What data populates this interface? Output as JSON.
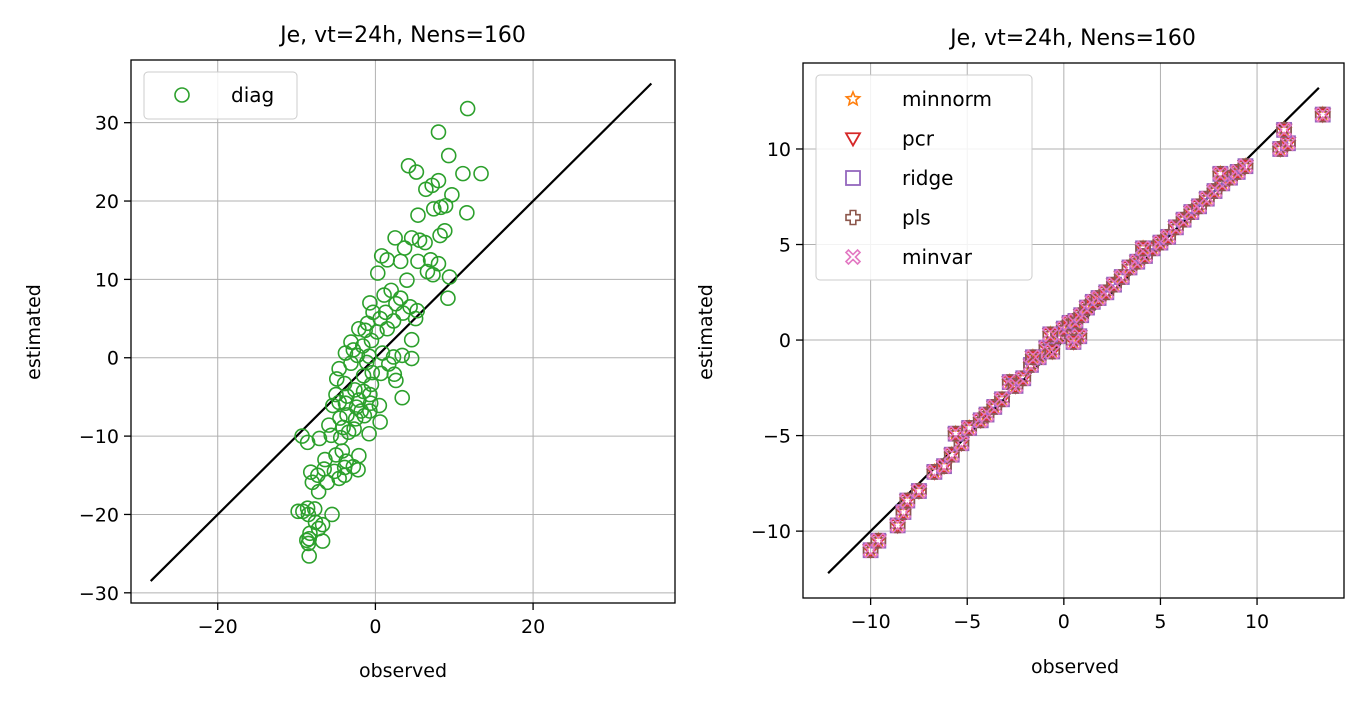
{
  "chart_data": [
    {
      "type": "scatter",
      "title": "Je, vt=24h, Nens=160",
      "xlabel": "observed",
      "ylabel": "estimated",
      "xlim": [
        -31,
        38
      ],
      "ylim": [
        -31.3,
        38
      ],
      "xticks": [
        -20,
        0,
        20
      ],
      "yticks": [
        -30,
        -20,
        -10,
        0,
        10,
        20,
        30
      ],
      "xtick_labels": [
        "−20",
        "0",
        "20"
      ],
      "ytick_labels": [
        "−30",
        "−20",
        "−10",
        "0",
        "10",
        "20",
        "30"
      ],
      "grid": true,
      "legend_position": "top-left",
      "reference_line": {
        "x": [
          -28.5,
          35
        ],
        "y": [
          -28.5,
          35
        ],
        "color": "#000000"
      },
      "series": [
        {
          "name": "diag",
          "marker": "circle-open",
          "color": "#2ca02c",
          "points": [
            [
              11.7,
              31.8
            ],
            [
              8.0,
              28.8
            ],
            [
              4.2,
              24.5
            ],
            [
              5.2,
              23.7
            ],
            [
              9.3,
              25.8
            ],
            [
              11.1,
              23.5
            ],
            [
              13.4,
              23.5
            ],
            [
              7.2,
              22.0
            ],
            [
              8.0,
              22.6
            ],
            [
              6.4,
              21.5
            ],
            [
              9.7,
              20.8
            ],
            [
              7.4,
              19.0
            ],
            [
              8.3,
              19.2
            ],
            [
              8.9,
              19.4
            ],
            [
              11.6,
              18.5
            ],
            [
              5.4,
              18.2
            ],
            [
              8.8,
              16.2
            ],
            [
              8.2,
              15.6
            ],
            [
              4.6,
              15.3
            ],
            [
              5.6,
              15.0
            ],
            [
              2.5,
              15.3
            ],
            [
              3.7,
              14.0
            ],
            [
              6.3,
              14.7
            ],
            [
              0.8,
              13.0
            ],
            [
              1.5,
              12.5
            ],
            [
              3.2,
              12.3
            ],
            [
              5.4,
              12.3
            ],
            [
              7.0,
              12.5
            ],
            [
              8.0,
              12.0
            ],
            [
              6.6,
              11.0
            ],
            [
              9.4,
              10.3
            ],
            [
              7.3,
              10.6
            ],
            [
              0.3,
              10.8
            ],
            [
              4.0,
              9.9
            ],
            [
              2.0,
              8.6
            ],
            [
              1.1,
              8.0
            ],
            [
              3.2,
              7.6
            ],
            [
              9.2,
              7.6
            ],
            [
              2.6,
              6.9
            ],
            [
              4.4,
              6.5
            ],
            [
              3.5,
              5.7
            ],
            [
              5.3,
              6.0
            ],
            [
              -0.7,
              7.0
            ],
            [
              -0.3,
              5.8
            ],
            [
              1.3,
              5.8
            ],
            [
              0.6,
              5.0
            ],
            [
              2.3,
              4.7
            ],
            [
              5.1,
              5.0
            ],
            [
              -1.0,
              4.4
            ],
            [
              -2.1,
              3.7
            ],
            [
              -1.3,
              3.5
            ],
            [
              0.2,
              3.3
            ],
            [
              1.5,
              3.7
            ],
            [
              -3.1,
              2.0
            ],
            [
              -0.5,
              2.2
            ],
            [
              -1.6,
              1.5
            ],
            [
              -2.8,
              1.0
            ],
            [
              -3.8,
              0.6
            ],
            [
              -2.3,
              0.3
            ],
            [
              -0.8,
              0.2
            ],
            [
              0.9,
              0.6
            ],
            [
              2.3,
              0.1
            ],
            [
              3.4,
              0.3
            ],
            [
              4.6,
              2.3
            ],
            [
              4.6,
              -0.1
            ],
            [
              -1.1,
              -0.6
            ],
            [
              -3.1,
              -0.7
            ],
            [
              -4.6,
              -1.4
            ],
            [
              1.7,
              -0.8
            ],
            [
              -0.4,
              -1.9
            ],
            [
              0.7,
              -2.0
            ],
            [
              2.4,
              -2.1
            ],
            [
              -1.5,
              -2.3
            ],
            [
              -4.9,
              -2.7
            ],
            [
              -3.9,
              -3.3
            ],
            [
              -0.5,
              -3.4
            ],
            [
              2.6,
              -2.9
            ],
            [
              -2.6,
              -4.1
            ],
            [
              -1.5,
              -4.3
            ],
            [
              -5.0,
              -4.7
            ],
            [
              -3.6,
              -4.9
            ],
            [
              -0.7,
              -4.7
            ],
            [
              -2.1,
              -5.4
            ],
            [
              -4.6,
              -5.7
            ],
            [
              -3.8,
              -5.8
            ],
            [
              -0.6,
              -5.8
            ],
            [
              0.5,
              -6.1
            ],
            [
              3.4,
              -5.1
            ],
            [
              -5.4,
              -6.1
            ],
            [
              -2.4,
              -6.3
            ],
            [
              -1.8,
              -6.8
            ],
            [
              -0.7,
              -6.8
            ],
            [
              -3.6,
              -7.3
            ],
            [
              -4.5,
              -7.7
            ],
            [
              -2.5,
              -7.8
            ],
            [
              -1.4,
              -7.4
            ],
            [
              -5.9,
              -8.6
            ],
            [
              0.6,
              -8.2
            ],
            [
              -4.1,
              -8.9
            ],
            [
              -2.7,
              -9.1
            ],
            [
              -3.4,
              -9.5
            ],
            [
              -5.6,
              -9.9
            ],
            [
              -0.8,
              -9.7
            ],
            [
              -4.4,
              -10.2
            ],
            [
              -7.1,
              -10.3
            ],
            [
              -9.3,
              -10.0
            ],
            [
              -8.6,
              -10.8
            ],
            [
              -4.2,
              -11.9
            ],
            [
              -5.0,
              -12.4
            ],
            [
              -2.1,
              -12.5
            ],
            [
              -6.4,
              -13.0
            ],
            [
              -3.7,
              -13.2
            ],
            [
              -2.8,
              -13.9
            ],
            [
              -6.5,
              -14.2
            ],
            [
              -3.9,
              -14.0
            ],
            [
              -5.2,
              -14.5
            ],
            [
              -8.2,
              -14.6
            ],
            [
              -2.2,
              -14.3
            ],
            [
              -7.3,
              -15.0
            ],
            [
              -4.6,
              -15.4
            ],
            [
              -3.9,
              -15.0
            ],
            [
              -8.0,
              -15.9
            ],
            [
              -6.1,
              -15.9
            ],
            [
              -7.2,
              -17.1
            ],
            [
              -9.8,
              -19.6
            ],
            [
              -9.2,
              -19.6
            ],
            [
              -8.6,
              -19.2
            ],
            [
              -7.7,
              -19.3
            ],
            [
              -5.5,
              -20.0
            ],
            [
              -8.5,
              -20.0
            ],
            [
              -7.6,
              -21.0
            ],
            [
              -6.7,
              -21.3
            ],
            [
              -7.2,
              -21.8
            ],
            [
              -8.3,
              -22.4
            ],
            [
              -8.4,
              -23.1
            ],
            [
              -8.7,
              -23.3
            ],
            [
              -6.7,
              -23.4
            ],
            [
              -8.5,
              -23.7
            ],
            [
              -8.4,
              -25.3
            ]
          ]
        }
      ]
    },
    {
      "type": "scatter",
      "title": "Je, vt=24h, Nens=160",
      "xlabel": "observed",
      "ylabel": "estimated",
      "xlim": [
        -13.5,
        14.5
      ],
      "ylim": [
        -13.5,
        14.5
      ],
      "xticks": [
        -10,
        -5,
        0,
        5,
        10
      ],
      "yticks": [
        -10,
        -5,
        0,
        5,
        10
      ],
      "xtick_labels": [
        "−10",
        "−5",
        "0",
        "5",
        "10"
      ],
      "ytick_labels": [
        "−10",
        "−5",
        "0",
        "5",
        "10"
      ],
      "grid": true,
      "legend_position": "top-left",
      "reference_line": {
        "x": [
          -12.2,
          13.2
        ],
        "y": [
          -12.2,
          13.2
        ],
        "color": "#000000"
      },
      "x": [
        -10.0,
        -9.6,
        -8.6,
        -8.3,
        -8.1,
        -7.5,
        -6.7,
        -6.2,
        -5.8,
        -5.3,
        -5.6,
        -4.9,
        -4.3,
        -4.0,
        -3.6,
        -3.2,
        -2.8,
        -2.5,
        -2.1,
        -1.7,
        -1.3,
        -0.9,
        -0.6,
        -0.3,
        0.0,
        0.3,
        0.6,
        0.9,
        1.2,
        1.5,
        1.8,
        2.2,
        2.6,
        3.0,
        3.4,
        3.8,
        4.2,
        4.6,
        5.0,
        5.4,
        5.8,
        6.2,
        6.6,
        7.0,
        7.4,
        7.8,
        8.2,
        8.6,
        9.0,
        9.4,
        11.2,
        11.6,
        11.4,
        13.4,
        -0.7,
        0.8,
        4.1,
        8.1,
        -1.6,
        0.5
      ],
      "y": [
        -11.0,
        -10.5,
        -9.7,
        -9.0,
        -8.4,
        -7.9,
        -6.9,
        -6.6,
        -6.0,
        -5.4,
        -4.9,
        -4.6,
        -4.2,
        -3.9,
        -3.5,
        -3.1,
        -2.2,
        -2.4,
        -2.0,
        -1.3,
        -0.9,
        -0.4,
        -0.6,
        0.2,
        0.6,
        0.9,
        1.0,
        1.3,
        1.7,
        2.0,
        2.2,
        2.5,
        2.9,
        3.3,
        3.8,
        4.1,
        4.4,
        4.8,
        5.1,
        5.4,
        5.9,
        6.3,
        6.7,
        7.0,
        7.4,
        7.8,
        8.2,
        8.5,
        8.8,
        9.1,
        10.0,
        10.3,
        11.0,
        11.8,
        0.3,
        0.2,
        4.8,
        8.7,
        -0.9,
        -0.1
      ],
      "series": [
        {
          "name": "minnorm",
          "marker": "star-open",
          "color": "#ff7f0e"
        },
        {
          "name": "pcr",
          "marker": "triangle-down-open",
          "color": "#d62728"
        },
        {
          "name": "ridge",
          "marker": "square-open",
          "color": "#9467bd"
        },
        {
          "name": "pls",
          "marker": "plus-open",
          "color": "#8c564b"
        },
        {
          "name": "minvar",
          "marker": "x-open",
          "color": "#e377c2"
        }
      ]
    }
  ]
}
